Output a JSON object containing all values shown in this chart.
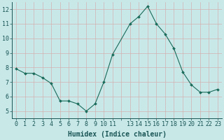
{
  "x": [
    0,
    1,
    2,
    3,
    4,
    5,
    6,
    7,
    8,
    9,
    10,
    11,
    13,
    14,
    15,
    16,
    17,
    18,
    19,
    20,
    21,
    22,
    23
  ],
  "y": [
    7.9,
    7.6,
    7.6,
    7.3,
    6.9,
    5.7,
    5.7,
    5.5,
    5.0,
    5.5,
    7.0,
    8.9,
    11.0,
    11.5,
    12.2,
    11.0,
    10.3,
    9.3,
    7.7,
    6.8,
    6.3,
    6.3,
    6.5
  ],
  "line_color": "#1a6b5a",
  "marker_color": "#1a6b5a",
  "bg_color": "#c8e8e8",
  "major_grid_color": "#e8c8c8",
  "minor_grid_color": "#e8c8c8",
  "xlabel": "Humidex (Indice chaleur)",
  "ylim": [
    4.5,
    12.5
  ],
  "yticks": [
    5,
    6,
    7,
    8,
    9,
    10,
    11,
    12
  ],
  "xtick_labels": [
    "0",
    "1",
    "2",
    "3",
    "4",
    "5",
    "6",
    "7",
    "8",
    "9",
    "1011",
    "",
    "1314",
    "15",
    "1617",
    "18",
    "1920",
    "21",
    "2223"
  ],
  "xlim": [
    -0.5,
    23.5
  ],
  "xlabel_fontsize": 7,
  "tick_fontsize": 6,
  "label_color": "#1a5555"
}
